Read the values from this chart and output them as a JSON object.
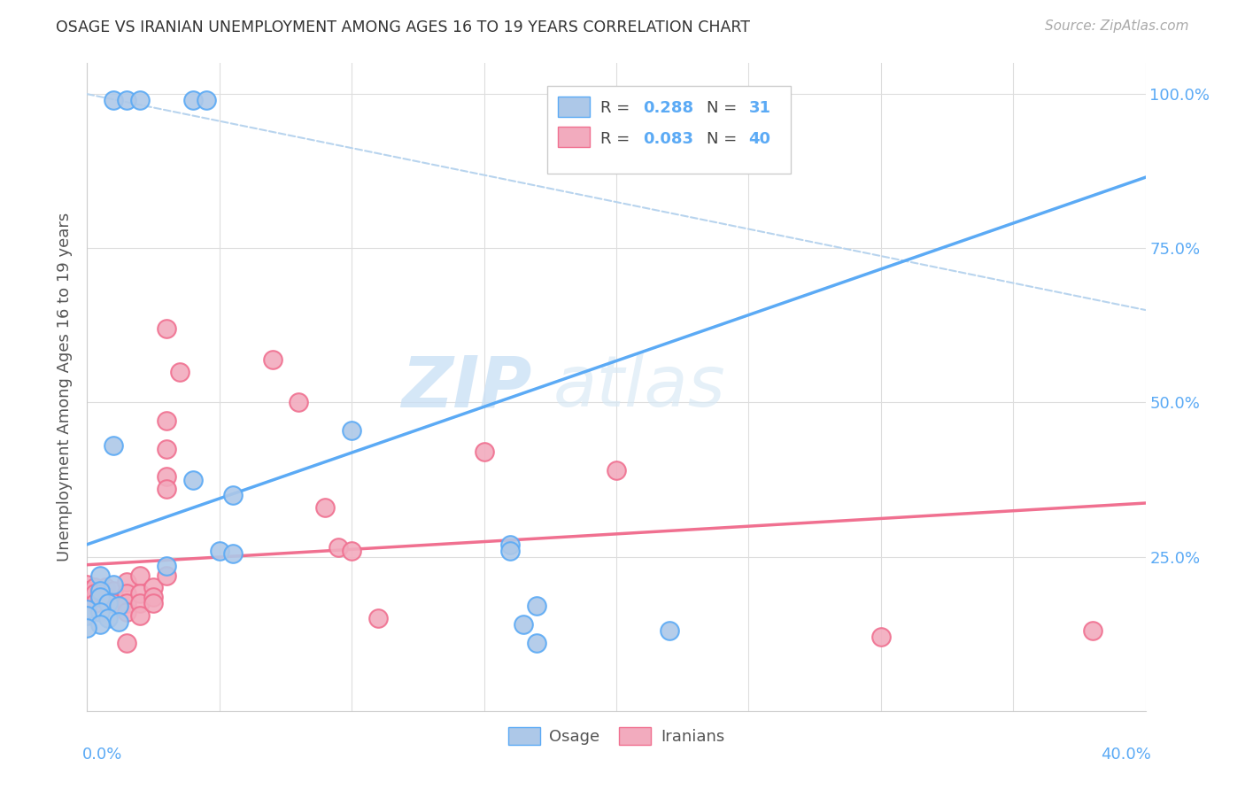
{
  "title": "OSAGE VS IRANIAN UNEMPLOYMENT AMONG AGES 16 TO 19 YEARS CORRELATION CHART",
  "source": "Source: ZipAtlas.com",
  "ylabel": "Unemployment Among Ages 16 to 19 years",
  "x_range": [
    0.0,
    0.4
  ],
  "y_range": [
    0.0,
    1.05
  ],
  "osage_R": 0.288,
  "osage_N": 31,
  "iranian_R": 0.083,
  "iranian_N": 40,
  "osage_color": "#adc8e8",
  "iranian_color": "#f2abbe",
  "osage_line_color": "#5baaf5",
  "iranian_line_color": "#f07090",
  "dashed_line_color": "#b8d4ee",
  "watermark_zip": "ZIP",
  "watermark_atlas": "atlas",
  "osage_line": [
    [
      0.0,
      0.27
    ],
    [
      0.4,
      0.865
    ]
  ],
  "iranian_line": [
    [
      0.0,
      0.237
    ],
    [
      0.4,
      0.337
    ]
  ],
  "dashed_line": [
    [
      0.0,
      1.0
    ],
    [
      0.4,
      0.65
    ]
  ],
  "osage_points": [
    [
      0.01,
      0.99
    ],
    [
      0.015,
      0.99
    ],
    [
      0.02,
      0.99
    ],
    [
      0.04,
      0.99
    ],
    [
      0.045,
      0.99
    ],
    [
      0.01,
      0.43
    ],
    [
      0.005,
      0.22
    ],
    [
      0.01,
      0.205
    ],
    [
      0.03,
      0.235
    ],
    [
      0.005,
      0.195
    ],
    [
      0.005,
      0.185
    ],
    [
      0.008,
      0.175
    ],
    [
      0.012,
      0.17
    ],
    [
      0.0,
      0.165
    ],
    [
      0.005,
      0.16
    ],
    [
      0.0,
      0.155
    ],
    [
      0.008,
      0.15
    ],
    [
      0.012,
      0.145
    ],
    [
      0.005,
      0.14
    ],
    [
      0.0,
      0.135
    ],
    [
      0.04,
      0.375
    ],
    [
      0.05,
      0.26
    ],
    [
      0.055,
      0.35
    ],
    [
      0.055,
      0.255
    ],
    [
      0.1,
      0.455
    ],
    [
      0.16,
      0.27
    ],
    [
      0.16,
      0.26
    ],
    [
      0.17,
      0.17
    ],
    [
      0.17,
      0.11
    ],
    [
      0.22,
      0.13
    ],
    [
      0.165,
      0.14
    ]
  ],
  "iranian_points": [
    [
      0.0,
      0.205
    ],
    [
      0.0,
      0.195
    ],
    [
      0.003,
      0.2
    ],
    [
      0.003,
      0.19
    ],
    [
      0.003,
      0.175
    ],
    [
      0.005,
      0.195
    ],
    [
      0.005,
      0.185
    ],
    [
      0.007,
      0.2
    ],
    [
      0.007,
      0.185
    ],
    [
      0.01,
      0.195
    ],
    [
      0.01,
      0.175
    ],
    [
      0.015,
      0.21
    ],
    [
      0.015,
      0.19
    ],
    [
      0.015,
      0.175
    ],
    [
      0.015,
      0.16
    ],
    [
      0.015,
      0.11
    ],
    [
      0.02,
      0.22
    ],
    [
      0.02,
      0.19
    ],
    [
      0.02,
      0.175
    ],
    [
      0.02,
      0.155
    ],
    [
      0.025,
      0.2
    ],
    [
      0.025,
      0.185
    ],
    [
      0.025,
      0.175
    ],
    [
      0.03,
      0.62
    ],
    [
      0.03,
      0.47
    ],
    [
      0.03,
      0.425
    ],
    [
      0.03,
      0.38
    ],
    [
      0.03,
      0.36
    ],
    [
      0.03,
      0.22
    ],
    [
      0.035,
      0.55
    ],
    [
      0.07,
      0.57
    ],
    [
      0.08,
      0.5
    ],
    [
      0.09,
      0.33
    ],
    [
      0.095,
      0.265
    ],
    [
      0.1,
      0.26
    ],
    [
      0.11,
      0.15
    ],
    [
      0.15,
      0.42
    ],
    [
      0.2,
      0.39
    ],
    [
      0.3,
      0.12
    ],
    [
      0.38,
      0.13
    ]
  ]
}
